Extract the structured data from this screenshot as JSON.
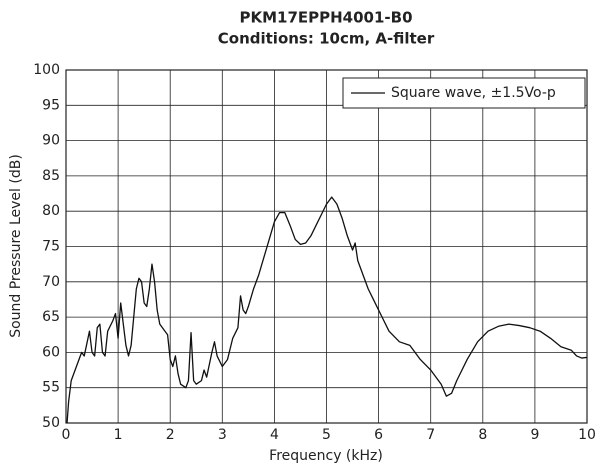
{
  "chart_data": {
    "type": "line",
    "title": "PKM17EPPH4001-B0",
    "subtitle": "Conditions: 10cm, A-filter",
    "x_label": "Frequency (kHz)",
    "y_label": "Sound Pressure Level (dB)",
    "xlim": [
      0,
      10
    ],
    "xticks": [
      0,
      1,
      2,
      3,
      4,
      5,
      6,
      7,
      8,
      9,
      10
    ],
    "ylim": [
      50,
      100
    ],
    "yticks": [
      50,
      55,
      60,
      65,
      70,
      75,
      80,
      85,
      90,
      95,
      100
    ],
    "grid": true,
    "legend": "upper right",
    "x": [
      0.02,
      0.05,
      0.1,
      0.2,
      0.3,
      0.35,
      0.45,
      0.5,
      0.55,
      0.6,
      0.65,
      0.7,
      0.75,
      0.8,
      0.9,
      0.95,
      1.0,
      1.05,
      1.1,
      1.15,
      1.2,
      1.25,
      1.3,
      1.35,
      1.4,
      1.45,
      1.5,
      1.55,
      1.6,
      1.65,
      1.7,
      1.75,
      1.8,
      1.9,
      1.95,
      2.0,
      2.05,
      2.1,
      2.15,
      2.2,
      2.3,
      2.35,
      2.4,
      2.45,
      2.5,
      2.6,
      2.65,
      2.7,
      2.8,
      2.85,
      2.9,
      3.0,
      3.1,
      3.2,
      3.3,
      3.35,
      3.4,
      3.45,
      3.5,
      3.6,
      3.7,
      3.8,
      3.9,
      4.0,
      4.1,
      4.2,
      4.3,
      4.4,
      4.5,
      4.6,
      4.7,
      4.8,
      4.9,
      5.0,
      5.1,
      5.2,
      5.3,
      5.4,
      5.5,
      5.55,
      5.6,
      5.7,
      5.8,
      5.9,
      6.0,
      6.2,
      6.4,
      6.6,
      6.8,
      7.0,
      7.2,
      7.3,
      7.4,
      7.5,
      7.7,
      7.9,
      8.1,
      8.3,
      8.5,
      8.7,
      8.9,
      9.1,
      9.3,
      9.5,
      9.7,
      9.8,
      9.9,
      10
    ],
    "series": [
      {
        "name": "Square wave, ±1.5Vo-p",
        "color": "#111111",
        "values": [
          50,
          53,
          56,
          58,
          60,
          59.5,
          63,
          60,
          59.5,
          63.5,
          64,
          60,
          59.5,
          63,
          64.5,
          65.5,
          62,
          67,
          64,
          61,
          59.5,
          61,
          65,
          69,
          70.5,
          70,
          67,
          66.5,
          69,
          72.5,
          70,
          66,
          64,
          63,
          62.5,
          59,
          58,
          59.5,
          57,
          55.5,
          55,
          56,
          62.8,
          56,
          55.5,
          56,
          57.5,
          56.5,
          60,
          61.5,
          59.5,
          58,
          59,
          62,
          63.5,
          68,
          66,
          65.5,
          66.5,
          69,
          71,
          73.5,
          76,
          78.5,
          79.8,
          79.8,
          78,
          76,
          75.3,
          75.5,
          76.5,
          78,
          79.5,
          81,
          82,
          81,
          79,
          76.5,
          74.5,
          75.5,
          73,
          71,
          69,
          67.5,
          66,
          63,
          61.5,
          61,
          59,
          57.5,
          55.5,
          53.8,
          54.2,
          56,
          59,
          61.5,
          63,
          63.7,
          64,
          63.8,
          63.5,
          63,
          62,
          60.8,
          60.3,
          59.5,
          59.2,
          59.3
        ]
      }
    ]
  }
}
